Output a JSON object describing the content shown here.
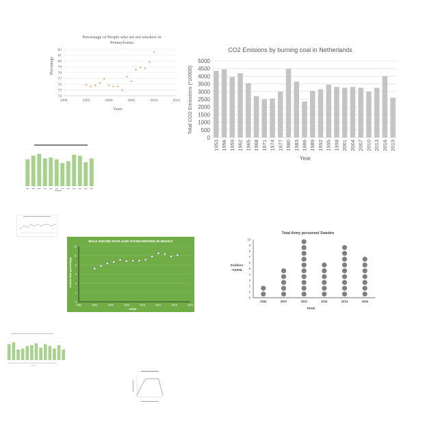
{
  "colors": {
    "page_bg": "#ffffff",
    "orange_marker": "#f4a46a",
    "co2_bar": "#c4c4c4",
    "green_bar": "#a9d18e",
    "green_bg": "#70ad47",
    "dot_grey": "#7f7f7f"
  },
  "chart_data": [
    {
      "id": "smokers",
      "type": "scatter",
      "title": "Percentage of People who are not smokers in Pennsylvania",
      "title_lines": [
        "Percentage of People who are not smokers in",
        "Pennsylvania"
      ],
      "xlabel": "Years",
      "ylabel": "Percentage",
      "xlim": [
        1990,
        2015
      ],
      "ylim": [
        74,
        82
      ],
      "x_ticks": [
        "1990",
        "1995",
        "2000",
        "2005",
        "2010",
        "2015"
      ],
      "y_ticks": [
        "74",
        "75",
        "76",
        "77",
        "78",
        "79",
        "80",
        "81",
        "82"
      ],
      "points": [
        {
          "x": 1995,
          "y": 75.9
        },
        {
          "x": 1996,
          "y": 75.6
        },
        {
          "x": 1997,
          "y": 75.8
        },
        {
          "x": 1998,
          "y": 76.2
        },
        {
          "x": 1999,
          "y": 76.9
        },
        {
          "x": 2000,
          "y": 75.8
        },
        {
          "x": 2001,
          "y": 75.6
        },
        {
          "x": 2002,
          "y": 75.6
        },
        {
          "x": 2003,
          "y": 75.0
        },
        {
          "x": 2004,
          "y": 77.3
        },
        {
          "x": 2005,
          "y": 76.5
        },
        {
          "x": 2006,
          "y": 78.5
        },
        {
          "x": 2007,
          "y": 78.9
        },
        {
          "x": 2008,
          "y": 78.7
        },
        {
          "x": 2009,
          "y": 79.8
        },
        {
          "x": 2010,
          "y": 81.5
        }
      ],
      "grid": true
    },
    {
      "id": "co2",
      "type": "bar",
      "title": "CO2 Emisions by burning coal in Netherlands",
      "xlabel": "Year",
      "ylabel": "Total CO2 Emissions (*10000)",
      "ylim": [
        0,
        5000
      ],
      "y_ticks": [
        "0",
        "500",
        "1000",
        "1500",
        "2000",
        "2500",
        "3000",
        "3500",
        "4000",
        "4500",
        "5000"
      ],
      "categories": [
        "1953",
        "1956",
        "1959",
        "1962",
        "1965",
        "1968",
        "1971",
        "1974",
        "1977",
        "1980",
        "1983",
        "1986",
        "1989",
        "1992",
        "1995",
        "1998",
        "2001",
        "2004",
        "2007",
        "2010",
        "2013",
        "2016",
        "2019"
      ],
      "values": [
        4350,
        4450,
        3950,
        4200,
        3550,
        2700,
        2500,
        2550,
        3000,
        4500,
        3650,
        2350,
        3050,
        3150,
        3450,
        3300,
        3250,
        3300,
        3250,
        3000,
        3250,
        4000,
        2600
      ],
      "grid": true
    },
    {
      "id": "green_bars_small",
      "type": "bar",
      "categories": [
        "2003",
        "2004",
        "2005",
        "2006",
        "2007",
        "2008",
        "2009",
        "2010",
        "2011",
        "2012",
        "2013",
        "2014"
      ],
      "values": [
        14.5,
        16.5,
        17.5,
        15,
        15.5,
        14.5,
        12.5,
        13.5,
        17,
        16.5,
        13,
        15
      ],
      "ylim": [
        0,
        20
      ],
      "grid": true
    },
    {
      "id": "tiny_line",
      "type": "line",
      "x": [
        1,
        2,
        3,
        4,
        5,
        6,
        7,
        8,
        9,
        10,
        11
      ],
      "values": [
        3,
        5,
        4,
        6,
        5,
        6,
        5,
        6,
        6,
        5,
        6
      ],
      "ylim": [
        0,
        10
      ]
    },
    {
      "id": "mexico",
      "type": "scatter",
      "title": "MALE SUICIDE RATE (AGE-STANDARDIZED) IN MEXICO",
      "xlabel": "YEAR",
      "ylabel": "Suicide Rate (percentage)",
      "xlim": [
        1985,
        2020
      ],
      "ylim": [
        0,
        12
      ],
      "x_ticks": [
        "1985",
        "1990",
        "1995",
        "2000",
        "2005",
        "2010",
        "2015",
        "2020"
      ],
      "y_ticks": [
        "0",
        "2",
        "4",
        "6",
        "8",
        "10",
        "12"
      ],
      "points": [
        {
          "x": 1990,
          "y": 7.2
        },
        {
          "x": 1992,
          "y": 7.8
        },
        {
          "x": 1994,
          "y": 8.3
        },
        {
          "x": 1996,
          "y": 8.6
        },
        {
          "x": 1998,
          "y": 9.1
        },
        {
          "x": 2000,
          "y": 8.8
        },
        {
          "x": 2002,
          "y": 8.9
        },
        {
          "x": 2004,
          "y": 8.9
        },
        {
          "x": 2006,
          "y": 9.1
        },
        {
          "x": 2008,
          "y": 9.8
        },
        {
          "x": 2010,
          "y": 10.5
        },
        {
          "x": 2012,
          "y": 10.3
        },
        {
          "x": 2014,
          "y": 9.8
        },
        {
          "x": 2016,
          "y": 10.1
        }
      ],
      "grid": true
    },
    {
      "id": "sweden",
      "type": "dot",
      "title": "Total Army personnel Sweden",
      "xlabel": "YEAR",
      "ylabel_lines": [
        "Soldiers",
        "*10000"
      ],
      "ylim": [
        0,
        10
      ],
      "y_ticks": [
        "0",
        "1",
        "2",
        "3",
        "4",
        "5",
        "6",
        "7",
        "8",
        "9",
        "10"
      ],
      "categories": [
        "2004",
        "2007",
        "2010",
        "2012",
        "2014",
        "2016"
      ],
      "values": [
        2,
        5,
        10,
        6,
        9,
        7
      ]
    },
    {
      "id": "green_bars_small_2",
      "type": "bar",
      "categories": [
        "1",
        "2",
        "3",
        "4",
        "5",
        "6",
        "7",
        "8",
        "9",
        "10",
        "11",
        "12",
        "13"
      ],
      "values": [
        18,
        20,
        12,
        13,
        16,
        17,
        19,
        14,
        18,
        16,
        13,
        17,
        12
      ],
      "ylim": [
        0,
        25
      ],
      "grid": true
    },
    {
      "id": "tiny_line_2",
      "type": "line",
      "x": [
        1,
        2,
        3,
        4,
        5,
        6,
        7
      ],
      "values": [
        0.5,
        4.0,
        6.5,
        6.7,
        6.6,
        6.6,
        0.6
      ],
      "ylim": [
        0,
        8
      ]
    }
  ]
}
